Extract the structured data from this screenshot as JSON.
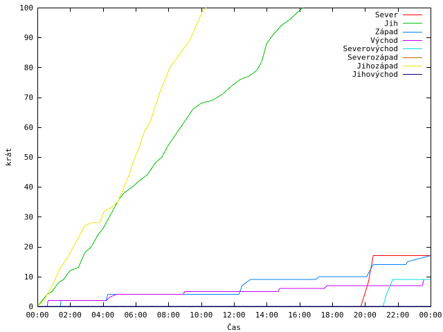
{
  "chart_data": {
    "type": "line",
    "title": "",
    "xlabel": "Čas",
    "ylabel": "krát",
    "xlim": [
      0,
      24
    ],
    "ylim": [
      0,
      100
    ],
    "x_tick_labels": [
      "00:00",
      "02:00",
      "04:00",
      "06:00",
      "08:00",
      "10:00",
      "12:00",
      "14:00",
      "16:00",
      "18:00",
      "20:00",
      "22:00",
      "00:00"
    ],
    "y_ticks": [
      0,
      10,
      20,
      30,
      40,
      50,
      60,
      70,
      80,
      90,
      100
    ],
    "grid": false,
    "legend_position": "top-right",
    "series": [
      {
        "name": "Sever",
        "color": "#ff0000",
        "points": [
          [
            0,
            0
          ],
          [
            19.75,
            0
          ],
          [
            20.2,
            8
          ],
          [
            20.5,
            17
          ],
          [
            24,
            17
          ]
        ]
      },
      {
        "name": "Jih",
        "color": "#00c000",
        "points": [
          [
            0,
            0
          ],
          [
            0.3,
            2
          ],
          [
            0.6,
            4
          ],
          [
            0.9,
            5
          ],
          [
            1.3,
            8
          ],
          [
            1.6,
            9
          ],
          [
            2.0,
            12
          ],
          [
            2.5,
            13
          ],
          [
            2.9,
            18
          ],
          [
            3.3,
            20
          ],
          [
            3.7,
            24
          ],
          [
            4.0,
            26
          ],
          [
            4.4,
            30
          ],
          [
            4.7,
            33
          ],
          [
            5.0,
            36
          ],
          [
            5.3,
            38
          ],
          [
            5.8,
            40
          ],
          [
            6.2,
            42
          ],
          [
            6.7,
            44
          ],
          [
            7.2,
            48
          ],
          [
            7.6,
            50
          ],
          [
            8.0,
            54
          ],
          [
            8.5,
            58
          ],
          [
            9.0,
            62
          ],
          [
            9.5,
            66
          ],
          [
            10.0,
            68
          ],
          [
            10.7,
            69
          ],
          [
            11.3,
            71
          ],
          [
            11.9,
            74
          ],
          [
            12.4,
            76
          ],
          [
            12.9,
            77
          ],
          [
            13.4,
            79
          ],
          [
            13.7,
            82
          ],
          [
            14.0,
            88
          ],
          [
            14.4,
            91
          ],
          [
            14.9,
            94
          ],
          [
            15.4,
            96
          ],
          [
            15.8,
            98
          ],
          [
            16.2,
            100
          ]
        ]
      },
      {
        "name": "Západ",
        "color": "#0080ff",
        "points": [
          [
            0,
            0
          ],
          [
            1.4,
            0
          ],
          [
            1.45,
            2
          ],
          [
            4.2,
            2
          ],
          [
            4.3,
            4
          ],
          [
            12.3,
            4
          ],
          [
            12.5,
            7
          ],
          [
            13.0,
            9
          ],
          [
            17.0,
            9
          ],
          [
            17.2,
            10
          ],
          [
            20.1,
            10
          ],
          [
            20.5,
            14
          ],
          [
            22.5,
            14
          ],
          [
            22.6,
            15
          ],
          [
            24,
            17
          ]
        ]
      },
      {
        "name": "Východ",
        "color": "#c000ff",
        "points": [
          [
            0,
            0
          ],
          [
            0.6,
            0
          ],
          [
            0.65,
            2
          ],
          [
            4.2,
            2
          ],
          [
            4.4,
            3
          ],
          [
            4.8,
            4
          ],
          [
            8.9,
            4
          ],
          [
            9.0,
            5
          ],
          [
            14.7,
            5
          ],
          [
            14.8,
            6
          ],
          [
            17.5,
            6
          ],
          [
            17.7,
            7
          ],
          [
            21.0,
            7
          ],
          [
            23.5,
            7
          ],
          [
            23.6,
            9
          ],
          [
            24,
            9
          ]
        ]
      },
      {
        "name": "Severovýchod",
        "color": "#00e0e0",
        "points": [
          [
            0,
            0
          ],
          [
            21.1,
            0
          ],
          [
            21.3,
            4
          ],
          [
            21.7,
            9
          ],
          [
            24,
            9
          ]
        ]
      },
      {
        "name": "Severozápad",
        "color": "#c06000",
        "points": [
          [
            0,
            0
          ],
          [
            24,
            0
          ]
        ]
      },
      {
        "name": "Jihozápad",
        "color": "#e8e800",
        "points": [
          [
            0,
            0
          ],
          [
            0.4,
            2
          ],
          [
            0.7,
            5
          ],
          [
            1.0,
            8
          ],
          [
            1.3,
            12
          ],
          [
            1.8,
            16
          ],
          [
            2.2,
            20
          ],
          [
            2.6,
            24
          ],
          [
            2.9,
            27
          ],
          [
            3.3,
            28
          ],
          [
            3.8,
            28
          ],
          [
            4.1,
            32
          ],
          [
            4.5,
            33
          ],
          [
            4.9,
            35
          ],
          [
            5.3,
            40
          ],
          [
            5.6,
            44
          ],
          [
            5.9,
            49
          ],
          [
            6.2,
            53
          ],
          [
            6.5,
            58
          ],
          [
            6.9,
            62
          ],
          [
            7.2,
            67
          ],
          [
            7.5,
            72
          ],
          [
            7.8,
            76
          ],
          [
            8.1,
            80
          ],
          [
            8.5,
            83
          ],
          [
            8.9,
            86
          ],
          [
            9.3,
            89
          ],
          [
            9.7,
            94
          ],
          [
            10.1,
            99
          ],
          [
            10.3,
            100
          ]
        ]
      },
      {
        "name": "Jihovýchod",
        "color": "#000080",
        "points": [
          [
            0,
            0
          ],
          [
            24,
            0
          ]
        ]
      }
    ]
  }
}
